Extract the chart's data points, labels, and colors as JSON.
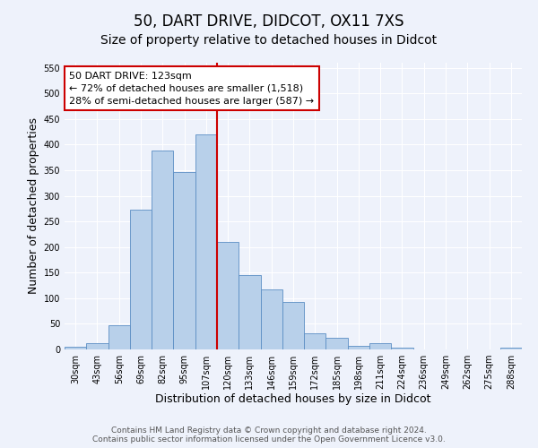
{
  "title": "50, DART DRIVE, DIDCOT, OX11 7XS",
  "subtitle": "Size of property relative to detached houses in Didcot",
  "xlabel": "Distribution of detached houses by size in Didcot",
  "ylabel": "Number of detached properties",
  "bar_labels": [
    "30sqm",
    "43sqm",
    "56sqm",
    "69sqm",
    "82sqm",
    "95sqm",
    "107sqm",
    "120sqm",
    "133sqm",
    "146sqm",
    "159sqm",
    "172sqm",
    "185sqm",
    "198sqm",
    "211sqm",
    "224sqm",
    "236sqm",
    "249sqm",
    "262sqm",
    "275sqm",
    "288sqm"
  ],
  "bar_values": [
    5,
    12,
    48,
    273,
    388,
    346,
    420,
    210,
    145,
    117,
    93,
    31,
    22,
    7,
    12,
    3,
    0,
    0,
    0,
    0,
    3
  ],
  "bar_color": "#b8d0ea",
  "bar_edge_color": "#5b8ec4",
  "vline_color": "#cc0000",
  "annotation_title": "50 DART DRIVE: 123sqm",
  "annotation_line1": "← 72% of detached houses are smaller (1,518)",
  "annotation_line2": "28% of semi-detached houses are larger (587) →",
  "annotation_box_color": "#ffffff",
  "annotation_box_edge": "#cc0000",
  "ylim": [
    0,
    560
  ],
  "yticks": [
    0,
    50,
    100,
    150,
    200,
    250,
    300,
    350,
    400,
    450,
    500,
    550
  ],
  "footer1": "Contains HM Land Registry data © Crown copyright and database right 2024.",
  "footer2": "Contains public sector information licensed under the Open Government Licence v3.0.",
  "bg_color": "#eef2fb",
  "grid_color": "#ffffff",
  "title_fontsize": 12,
  "subtitle_fontsize": 10,
  "axis_label_fontsize": 9,
  "tick_fontsize": 7,
  "footer_fontsize": 6.5,
  "annotation_fontsize": 8
}
